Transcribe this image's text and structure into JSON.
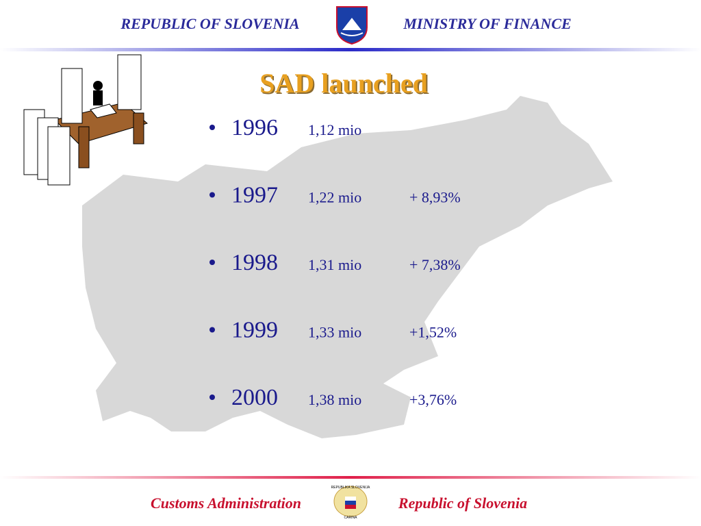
{
  "header": {
    "left": "REPUBLIC OF SLOVENIA",
    "right": "MINISTRY OF FINANCE"
  },
  "title": "SAD launched",
  "items": [
    {
      "year": "1996",
      "amount": "1,12 mio"
    },
    {
      "year": "1997",
      "amount": "1,22 mio",
      "change": "+ 8,93%"
    },
    {
      "year": "1998",
      "amount": "1,31 mio",
      "change": "+ 7,38%"
    },
    {
      "year": "1999",
      "amount": "1,33 mio",
      "change": "+1,52%"
    },
    {
      "year": "2000",
      "amount": "1,38 mio",
      "change": "+3,76%"
    }
  ],
  "footer": {
    "left": "Customs Administration",
    "right": "Republic of Slovenia",
    "emblem_top": "REPUBLIKA SLOVENIJA",
    "emblem_bottom": "CARINA"
  }
}
